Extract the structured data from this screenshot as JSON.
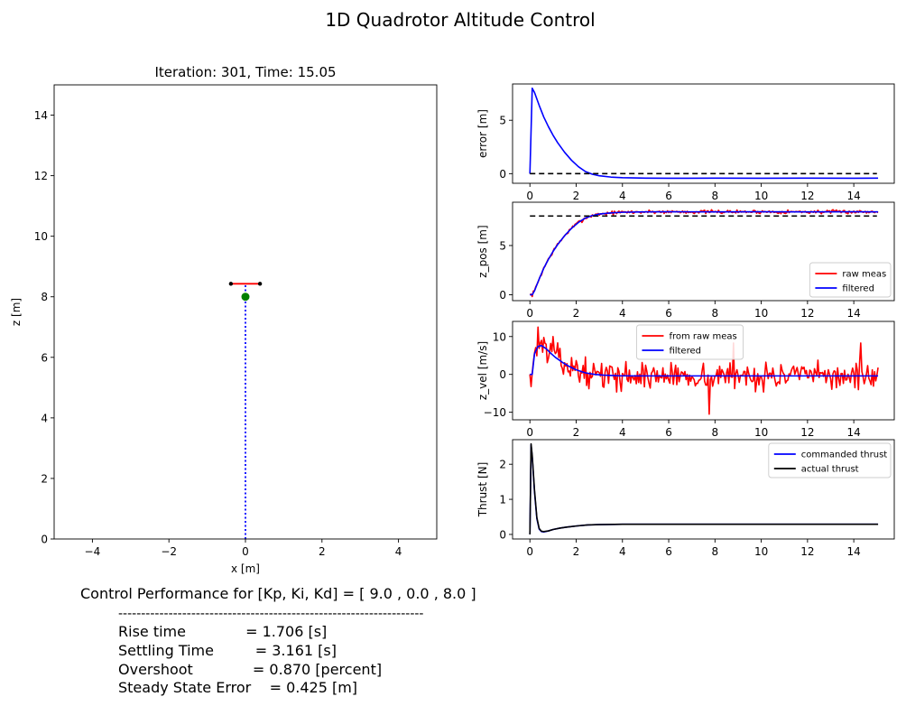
{
  "figure": {
    "title": "1D Quadrotor Altitude Control"
  },
  "performance": {
    "heading": "Control Performance for [Kp, Ki, Kd] = [ 9.0 , 0.0 , 8.0 ]",
    "separator": "-------------------------------------------------------------------",
    "lines": [
      "Rise time             = 1.706 [s]",
      "Settling Time         = 3.161 [s]",
      "Overshoot             = 0.870 [percent]",
      "Steady State Error    = 0.425 [m]"
    ]
  },
  "chart_data": [
    {
      "id": "scene",
      "type": "scatter",
      "title": "Iteration: 301, Time: 15.05",
      "xlabel": "x [m]",
      "ylabel": "z [m]",
      "xlim": [
        -5,
        5
      ],
      "ylim": [
        0,
        15
      ],
      "xticks": [
        -4,
        -2,
        0,
        2,
        4
      ],
      "yticks": [
        0,
        2,
        4,
        6,
        8,
        10,
        12,
        14
      ],
      "colors": {
        "body": "#ff0000",
        "rotor": "#000000",
        "setpoint": "#008000",
        "trail": "#0000ff"
      },
      "quad": {
        "x": 0,
        "z": 8.43,
        "half_width": 0.38
      },
      "setpoint": {
        "x": 0,
        "z": 8.0
      },
      "trail": {
        "x": 0,
        "z_from": 0,
        "z_to": 8.43
      }
    },
    {
      "id": "error",
      "type": "line",
      "ylabel": "error [m]",
      "xlim": [
        -0.75,
        15.75
      ],
      "ylim": [
        -0.9,
        8.4
      ],
      "xticks": [
        0,
        2,
        4,
        6,
        8,
        10,
        12,
        14
      ],
      "yticks": [
        0,
        5
      ],
      "series": [
        {
          "x": [
            0,
            0.1,
            0.2,
            0.4,
            0.6,
            0.8,
            1.0,
            1.2,
            1.5,
            1.8,
            2.1,
            2.4,
            2.7,
            3.0,
            3.5,
            4.0,
            5.0,
            6.0,
            8.0,
            10.0,
            12.0,
            14.0,
            15.05
          ],
          "y": [
            0,
            8.0,
            7.6,
            6.4,
            5.3,
            4.4,
            3.6,
            2.9,
            2.0,
            1.25,
            0.65,
            0.2,
            -0.05,
            -0.2,
            -0.32,
            -0.38,
            -0.42,
            -0.43,
            -0.42,
            -0.43,
            -0.42,
            -0.43,
            -0.42
          ],
          "color": "#0000ff",
          "style": "solid"
        },
        {
          "x": [
            0,
            15
          ],
          "y": [
            0,
            0
          ],
          "color": "#000000",
          "style": "dashed"
        }
      ]
    },
    {
      "id": "zpos",
      "type": "line",
      "ylabel": "z_pos [m]",
      "xlim": [
        -0.75,
        15.75
      ],
      "ylim": [
        -0.6,
        9.4
      ],
      "xticks": [
        0,
        2,
        4,
        6,
        8,
        10,
        12,
        14
      ],
      "yticks": [
        0,
        5
      ],
      "legend": {
        "position": "lower-right",
        "entries": [
          {
            "label": "raw meas",
            "color": "#ff0000"
          },
          {
            "label": "filtered",
            "color": "#0000ff"
          }
        ]
      },
      "series": [
        {
          "name": "raw meas",
          "type": "noisy",
          "base": "filtered",
          "noise": 0.15,
          "seed": 7,
          "color": "#ff0000",
          "style": "solid"
        },
        {
          "name": "filtered",
          "x": [
            0,
            0.1,
            0.2,
            0.4,
            0.6,
            0.8,
            1.0,
            1.2,
            1.5,
            1.8,
            2.1,
            2.4,
            2.7,
            3.0,
            3.5,
            4.0,
            5.0,
            6.0,
            8.0,
            10.0,
            12.0,
            14.0,
            15.05
          ],
          "y": [
            0,
            0,
            0.4,
            1.6,
            2.7,
            3.6,
            4.4,
            5.1,
            6.0,
            6.75,
            7.35,
            7.8,
            8.05,
            8.2,
            8.32,
            8.38,
            8.42,
            8.43,
            8.42,
            8.43,
            8.42,
            8.43,
            8.42
          ],
          "color": "#0000ff",
          "style": "solid"
        },
        {
          "x": [
            0,
            15
          ],
          "y": [
            8.0,
            8.0
          ],
          "color": "#000000",
          "style": "dashed"
        }
      ]
    },
    {
      "id": "zvel",
      "type": "line",
      "ylabel": "z_vel [m/s]",
      "xlim": [
        -0.75,
        15.75
      ],
      "ylim": [
        -12,
        14
      ],
      "xticks": [
        0,
        2,
        4,
        6,
        8,
        10,
        12,
        14
      ],
      "yticks": [
        -10,
        0,
        10
      ],
      "legend": {
        "position": "top-center",
        "entries": [
          {
            "label": "from raw meas",
            "color": "#ff0000"
          },
          {
            "label": "filtered",
            "color": "#0000ff"
          }
        ]
      },
      "series": [
        {
          "name": "from raw meas",
          "type": "noisy",
          "base": "filtered",
          "noise": 2.8,
          "seed": 13,
          "color": "#ff0000",
          "style": "solid",
          "spikes": [
            [
              0.35,
              12.5
            ],
            [
              7.75,
              -10.5
            ],
            [
              8.8,
              8.3
            ],
            [
              14.3,
              8.3
            ],
            [
              1.0,
              10.0
            ]
          ]
        },
        {
          "name": "filtered",
          "x": [
            0,
            0.1,
            0.2,
            0.35,
            0.5,
            0.7,
            0.9,
            1.1,
            1.4,
            1.7,
            2.0,
            2.4,
            2.8,
            3.2,
            3.8,
            4.5,
            6.0,
            8.0,
            10.0,
            12.0,
            14.0,
            15.05
          ],
          "y": [
            0,
            0,
            5.5,
            7.4,
            7.6,
            6.8,
            5.6,
            4.5,
            3.2,
            2.1,
            1.2,
            0.4,
            0.0,
            -0.2,
            -0.35,
            -0.4,
            -0.4,
            -0.4,
            -0.4,
            -0.4,
            -0.4,
            -0.4
          ],
          "color": "#0000ff",
          "style": "solid"
        }
      ]
    },
    {
      "id": "thrust",
      "type": "line",
      "ylabel": "Thrust [N]",
      "xlim": [
        -0.75,
        15.75
      ],
      "ylim": [
        -0.13,
        2.7
      ],
      "xticks": [
        0,
        2,
        4,
        6,
        8,
        10,
        12,
        14
      ],
      "yticks": [
        0,
        1,
        2
      ],
      "legend": {
        "position": "top-right",
        "entries": [
          {
            "label": "commanded thrust",
            "color": "#0000ff"
          },
          {
            "label": "actual thrust",
            "color": "#000000"
          }
        ]
      },
      "series": [
        {
          "name": "commanded thrust",
          "x": [
            0,
            0.05,
            0.1,
            0.2,
            0.3,
            0.4,
            0.5,
            0.6,
            0.8,
            1.0,
            1.3,
            1.6,
            2.0,
            2.5,
            3.0,
            4.0,
            5.0,
            6.0,
            8.0,
            10.0,
            12.0,
            14.0,
            15.05
          ],
          "y": [
            0,
            2.55,
            2.2,
            1.2,
            0.45,
            0.15,
            0.08,
            0.07,
            0.1,
            0.14,
            0.18,
            0.21,
            0.24,
            0.27,
            0.28,
            0.29,
            0.29,
            0.29,
            0.29,
            0.29,
            0.29,
            0.29,
            0.29
          ],
          "color": "#0000ff",
          "style": "solid"
        },
        {
          "name": "actual thrust",
          "x": [
            0,
            0.05,
            0.1,
            0.2,
            0.3,
            0.4,
            0.5,
            0.6,
            0.8,
            1.0,
            1.3,
            1.6,
            2.0,
            2.5,
            3.0,
            4.0,
            5.0,
            6.0,
            8.0,
            10.0,
            12.0,
            14.0,
            15.05
          ],
          "y": [
            0,
            2.58,
            2.25,
            1.25,
            0.48,
            0.17,
            0.09,
            0.08,
            0.1,
            0.14,
            0.18,
            0.21,
            0.24,
            0.27,
            0.28,
            0.29,
            0.29,
            0.29,
            0.29,
            0.29,
            0.29,
            0.29,
            0.29
          ],
          "color": "#000000",
          "style": "solid"
        }
      ]
    }
  ]
}
